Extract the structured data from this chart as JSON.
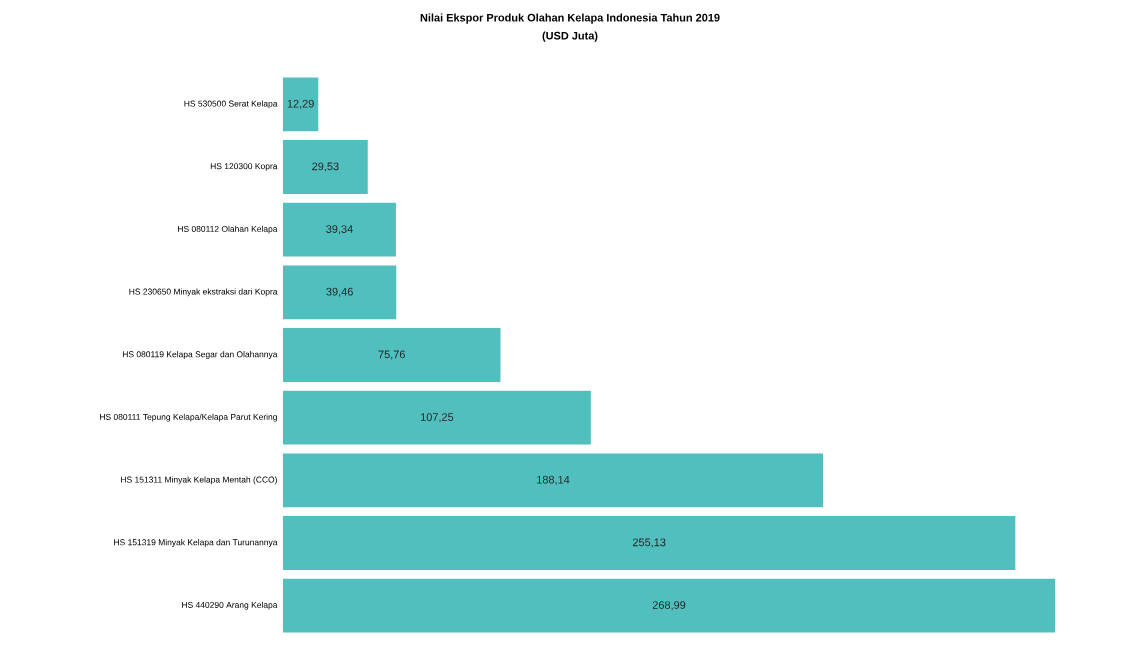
{
  "chart_data": {
    "type": "bar",
    "orientation": "horizontal",
    "title": "Nilai Ekspor Produk Olahan Kelapa Indonesia Tahun 2019",
    "subtitle": "(USD Juta)",
    "categories": [
      "HS 530500 Serat Kelapa",
      "HS 120300 Kopra",
      "HS 080112 Olahan Kelapa",
      "HS 230650 Minyak ekstraksi dari Kopra",
      "HS 080119 Kelapa Segar dan Olahannya",
      "HS 080111 Tepung Kelapa/Kelapa Parut Kering",
      "HS 151311 Minyak Kelapa Mentah (CCO)",
      "HS 151319 Minyak Kelapa dan Turunannya",
      "HS 440290 Arang Kelapa"
    ],
    "values": [
      12.29,
      29.53,
      39.34,
      39.46,
      75.76,
      107.25,
      188.14,
      255.13,
      268.99
    ],
    "value_labels": [
      "12,29",
      "29,53",
      "39,34",
      "39,46",
      "75,76",
      "107,25",
      "188,14",
      "255,13",
      "268,99"
    ],
    "color": "#52bfbf",
    "tick_labels": "y"
  }
}
